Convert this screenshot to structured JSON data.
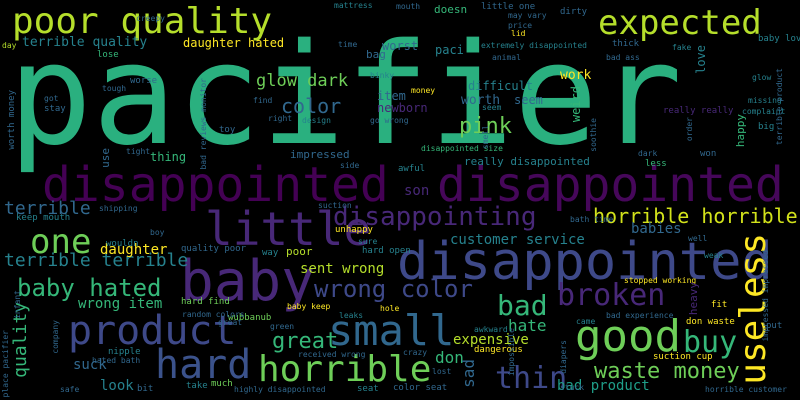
{
  "palette": {
    "background": "#000000",
    "colors": [
      "#fde725",
      "#b5de2b",
      "#6ece58",
      "#35b779",
      "#1f9e89",
      "#26828e",
      "#31688e",
      "#3e4989",
      "#482878",
      "#440154"
    ]
  },
  "words": [
    {
      "text": "pacifier",
      "color": "#2ab07f"
    },
    {
      "text": "disappointed",
      "color": "#440154"
    },
    {
      "text": "disappointed",
      "color": "#46075a"
    },
    {
      "text": "disappointed",
      "color": "#3e4989"
    },
    {
      "text": "baby",
      "color": "#482878"
    },
    {
      "text": "poor quality",
      "color": "#b5de2b"
    },
    {
      "text": "expected",
      "color": "#b5de2b"
    },
    {
      "text": "little",
      "color": "#482878"
    },
    {
      "text": "product",
      "color": "#3e4989"
    },
    {
      "text": "small",
      "color": "#31688e"
    },
    {
      "text": "good",
      "color": "#6ece58"
    },
    {
      "text": "hard",
      "color": "#3b528b"
    },
    {
      "text": "horrible",
      "color": "#6ece58"
    },
    {
      "text": "useless",
      "color": "#fde725"
    },
    {
      "text": "one",
      "color": "#6ece58"
    },
    {
      "text": "broken",
      "color": "#482878"
    },
    {
      "text": "disappointing",
      "color": "#482878"
    },
    {
      "text": "baby hated",
      "color": "#35b779"
    },
    {
      "text": "wrong color",
      "color": "#3e4989"
    },
    {
      "text": "bad",
      "color": "#35b779"
    },
    {
      "text": "buy",
      "color": "#35b779"
    },
    {
      "text": "thin",
      "color": "#3e4989"
    },
    {
      "text": "horrible horrible",
      "color": "#d2e21b"
    },
    {
      "text": "terrible terrible",
      "color": "#26828e"
    },
    {
      "text": "great",
      "color": "#35b779"
    },
    {
      "text": "waste money",
      "color": "#6ece58"
    },
    {
      "text": "glow dark",
      "color": "#6ece58"
    },
    {
      "text": "pink",
      "color": "#6ece58"
    },
    {
      "text": "color",
      "color": "#31688e"
    },
    {
      "text": "terrible",
      "color": "#31688e"
    },
    {
      "text": "quality",
      "color": "#35b779"
    },
    {
      "text": "hate",
      "color": "#35b779"
    },
    {
      "text": "don",
      "color": "#35b779"
    },
    {
      "text": "sad",
      "color": "#31688e"
    },
    {
      "text": "son",
      "color": "#482878"
    },
    {
      "text": "sent wrong",
      "color": "#b5de2b"
    },
    {
      "text": "customer service",
      "color": "#26828e"
    },
    {
      "text": "wrong item",
      "color": "#35b779"
    },
    {
      "text": "daughter",
      "color": "#fde725"
    },
    {
      "text": "babies",
      "color": "#31688e"
    },
    {
      "text": "expensive",
      "color": "#b5de2b"
    },
    {
      "text": "bad product",
      "color": "#1f9e89"
    },
    {
      "text": "look",
      "color": "#26828e"
    },
    {
      "text": "suck",
      "color": "#31688e"
    },
    {
      "text": "terrible quality",
      "color": "#26828e"
    },
    {
      "text": "daughter hated",
      "color": "#fde725"
    },
    {
      "text": "worst",
      "color": "#31688e"
    },
    {
      "text": "item",
      "color": "#31688e"
    },
    {
      "text": "newborn",
      "color": "#482878"
    },
    {
      "text": "worth",
      "color": "#31688e"
    },
    {
      "text": "seem",
      "color": "#31688e"
    },
    {
      "text": "difficult",
      "color": "#26828e"
    },
    {
      "text": "work",
      "color": "#fde725"
    },
    {
      "text": "weird",
      "color": "#35b779"
    },
    {
      "text": "love",
      "color": "#26828e"
    },
    {
      "text": "paci",
      "color": "#26828e"
    },
    {
      "text": "doesn",
      "color": "#35b779"
    },
    {
      "text": "bag",
      "color": "#31688e"
    },
    {
      "text": "thing",
      "color": "#35b779"
    },
    {
      "text": "use",
      "color": "#31688e"
    },
    {
      "text": "impressed",
      "color": "#31688e"
    },
    {
      "text": "really disappointed",
      "color": "#26828e"
    },
    {
      "text": "happy",
      "color": "#35b779"
    },
    {
      "text": "mattress",
      "color": "#26828e"
    },
    {
      "text": "little one",
      "color": "#31688e"
    },
    {
      "text": "dirty",
      "color": "#31688e"
    },
    {
      "text": "lid",
      "color": "#fde725"
    },
    {
      "text": "extremely disappointed",
      "color": "#26828e"
    },
    {
      "text": "creepy",
      "color": "#31688e"
    },
    {
      "text": "lose",
      "color": "#35b779"
    },
    {
      "text": "binky",
      "color": "#26828e"
    },
    {
      "text": "disappointed size",
      "color": "#35b779"
    },
    {
      "text": "awful",
      "color": "#26828e"
    },
    {
      "text": "side",
      "color": "#31688e"
    },
    {
      "text": "unhappy",
      "color": "#fde725"
    },
    {
      "text": "hard find",
      "color": "#6ece58"
    },
    {
      "text": "baby keep",
      "color": "#fde725"
    },
    {
      "text": "wubbanub",
      "color": "#6ece58"
    },
    {
      "text": "great",
      "color": "#31688e"
    },
    {
      "text": "hard open",
      "color": "#26828e"
    },
    {
      "text": "poor",
      "color": "#b5de2b"
    },
    {
      "text": "way",
      "color": "#26828e"
    },
    {
      "text": "sure",
      "color": "#26828e"
    },
    {
      "text": "nipple",
      "color": "#26828e"
    },
    {
      "text": "hated bath",
      "color": "#31688e"
    },
    {
      "text": "bit",
      "color": "#31688e"
    },
    {
      "text": "take",
      "color": "#26828e"
    },
    {
      "text": "much",
      "color": "#6ece58"
    },
    {
      "text": "seat",
      "color": "#26828e"
    },
    {
      "text": "color seat",
      "color": "#31688e"
    },
    {
      "text": "lost",
      "color": "#31688e"
    },
    {
      "text": "crazy",
      "color": "#31688e"
    },
    {
      "text": "dangerous",
      "color": "#fde725"
    },
    {
      "text": "suction cup",
      "color": "#fde725"
    },
    {
      "text": "don waste",
      "color": "#fde725"
    },
    {
      "text": "bad experience",
      "color": "#31688e"
    },
    {
      "text": "fit",
      "color": "#fde725"
    },
    {
      "text": "stopped working",
      "color": "#fde725"
    },
    {
      "text": "heavy",
      "color": "#482878"
    },
    {
      "text": "put",
      "color": "#31688e"
    },
    {
      "text": "less",
      "color": "#35b779"
    },
    {
      "text": "won",
      "color": "#31688e"
    },
    {
      "text": "dark",
      "color": "#31688e"
    },
    {
      "text": "really really",
      "color": "#482878"
    },
    {
      "text": "missing",
      "color": "#26828e"
    },
    {
      "text": "complaint",
      "color": "#26828e"
    },
    {
      "text": "big",
      "color": "#26828e"
    },
    {
      "text": "glow",
      "color": "#26828e"
    },
    {
      "text": "baby loves",
      "color": "#26828e"
    },
    {
      "text": "fake",
      "color": "#26828e"
    },
    {
      "text": "thick",
      "color": "#31688e"
    },
    {
      "text": "bad ass",
      "color": "#31688e"
    },
    {
      "text": "animal",
      "color": "#31688e"
    },
    {
      "text": "may vary",
      "color": "#31688e"
    },
    {
      "text": "price",
      "color": "#31688e"
    },
    {
      "text": "money",
      "color": "#fde725"
    },
    {
      "text": "design",
      "color": "#26828e"
    },
    {
      "text": "go wrong",
      "color": "#31688e"
    },
    {
      "text": "find",
      "color": "#31688e"
    },
    {
      "text": "right",
      "color": "#31688e"
    },
    {
      "text": "toy",
      "color": "#31688e"
    },
    {
      "text": "tight",
      "color": "#31688e"
    },
    {
      "text": "worse",
      "color": "#31688e"
    },
    {
      "text": "tough",
      "color": "#31688e"
    },
    {
      "text": "stay",
      "color": "#31688e"
    },
    {
      "text": "got",
      "color": "#31688e"
    },
    {
      "text": "day",
      "color": "#b5de2b"
    },
    {
      "text": "time",
      "color": "#31688e"
    },
    {
      "text": "mouth",
      "color": "#31688e"
    },
    {
      "text": "keep mouth",
      "color": "#26828e"
    },
    {
      "text": "wouldn",
      "color": "#26828e"
    },
    {
      "text": "boy",
      "color": "#31688e"
    },
    {
      "text": "quality poor",
      "color": "#31688e"
    },
    {
      "text": "shipping",
      "color": "#31688e"
    },
    {
      "text": "suction",
      "color": "#31688e"
    },
    {
      "text": "random colors",
      "color": "#31688e"
    },
    {
      "text": "leaks",
      "color": "#26828e"
    },
    {
      "text": "hole",
      "color": "#fde725"
    },
    {
      "text": "green",
      "color": "#31688e"
    },
    {
      "text": "received wrong",
      "color": "#31688e"
    },
    {
      "text": "awkward",
      "color": "#26828e"
    },
    {
      "text": "highly disappointed",
      "color": "#31688e"
    },
    {
      "text": "company",
      "color": "#31688e"
    },
    {
      "text": "infant",
      "color": "#31688e"
    },
    {
      "text": "place pacifier",
      "color": "#31688e"
    },
    {
      "text": "safe",
      "color": "#31688e"
    },
    {
      "text": "well",
      "color": "#31688e"
    },
    {
      "text": "weak",
      "color": "#26828e"
    },
    {
      "text": "came",
      "color": "#26828e"
    },
    {
      "text": "worth money",
      "color": "#31688e"
    },
    {
      "text": "bad reviews monitor",
      "color": "#31688e"
    },
    {
      "text": "soothie",
      "color": "#31688e"
    },
    {
      "text": "order",
      "color": "#31688e"
    },
    {
      "text": "smell",
      "color": "#31688e"
    },
    {
      "text": "terrible product",
      "color": "#31688e"
    },
    {
      "text": "impressed impressed",
      "color": "#31688e"
    },
    {
      "text": "horrible customer",
      "color": "#31688e"
    },
    {
      "text": "impossible",
      "color": "#31688e"
    },
    {
      "text": "diapers",
      "color": "#31688e"
    },
    {
      "text": "bath time",
      "color": "#31688e"
    },
    {
      "text": "stuck",
      "color": "#31688e"
    },
    {
      "text": "seem",
      "color": "#26828e"
    }
  ]
}
